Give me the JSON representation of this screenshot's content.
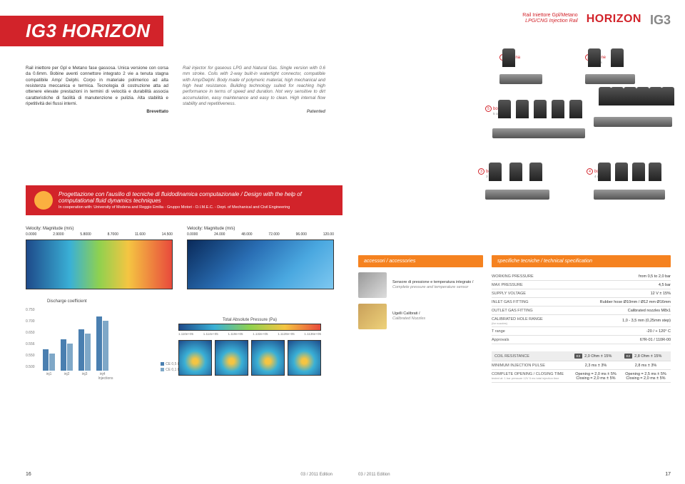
{
  "left": {
    "title": "IG3 HORIZON",
    "intro_it": "Rail iniettore per Gpl e Metano fase gassosa. Unica versione con corsa da 0.6mm. Bobine aventi connettore integrato 2 vie a tenuta stagna compatibile Amp/ Delphi. Corpo in materiale polimerico ad alta resistenza meccanica e termica. Tecnologia di costruzione atta ad ottenere elevate prestazioni in termini di velocità e durabilità associa caratteristiche di facilità di manutenzione e pulizia. Alta stabilità e ripetitività dei flussi interni.",
    "brev": "Brevettato",
    "intro_en": "Rail injector for gaseous LPG and Natural Gas. Single version with 0.6 mm stroke. Coils with 2-way built-in watertight connector, compatible with Amp/Delphi. Body made of polymeric material, high mechanical and high heat resistance. Building technology suited for reaching high performance in terms of speed and duration. Not very sensitive to dirt accumulation, easy maintenance and easy to clean. High internal flow stability and repetitiveness.",
    "patented": "Patented",
    "red_t1": "Progettazione con l'ausilio di tecniche di fluidodinamica computazionale / Design with the help of computational fluid dynamics techniques",
    "red_t2": "In cooperation with: University of Modena and Reggio Emilia - Gruppo Motori - D.I.M.E.C. - Dept. of Mechanical and Civil Engineering",
    "vel_title": "Velocity: Magnitude (m/s)",
    "vel_scale1": [
      "0.0000",
      "2.9000",
      "5.8000",
      "8.7000",
      "11.600",
      "14.500"
    ],
    "vel_scale2": [
      "0.0000",
      "24.000",
      "48.000",
      "72.000",
      "96.000",
      "120.00"
    ],
    "dc_title": "Discharge coefficient",
    "dc_y": [
      "0.750",
      "0.700",
      "0.650",
      "0.556",
      "0.550",
      "0.500"
    ],
    "dc_x": [
      "inj1",
      "inj2",
      "inj3",
      "inj4"
    ],
    "dc_x_label": "Injections",
    "dc_values_a": [
      0.58,
      0.62,
      0.66,
      0.71
    ],
    "dc_values_b": [
      0.56,
      0.6,
      0.64,
      0.69
    ],
    "dc_leg": [
      "CE 0,5 bar",
      "CE 0,1 bar"
    ],
    "p_title": "Total Absolute Pressure (Pa)",
    "p_scale": [
      "1.110e+05",
      "1.114e+05",
      "1.119e+05",
      "1.132e+05",
      "1.1128e+05",
      "1.1136e+05"
    ],
    "page_num": "16",
    "edition": "03 / 2011 Edition",
    "colors": {
      "brand_red": "#d2232a",
      "orange": "#f58220",
      "accent_yellow": "#fbb040",
      "bar_a": "#4a7fb0",
      "bar_b": "#7fa8c8"
    }
  },
  "right": {
    "header_sub_it": "Rail Iniettore Gpl/Metano",
    "header_sub_en": "LPG/CNG Injection Rail",
    "header_hz": "HORIZON",
    "header_ig3": "IG3",
    "rails": [
      {
        "n": "1",
        "it": "bobina",
        "en": "coil",
        "coils": 1
      },
      {
        "n": "2",
        "it": "bobine",
        "en": "coils",
        "coils": 2
      },
      {
        "n": "5",
        "it": "bobine",
        "en": "coils",
        "coils": 5
      },
      {
        "n": "6",
        "it": "",
        "en": "",
        "coils": 6
      },
      {
        "n": "3",
        "it": "bobine",
        "en": "coils",
        "coils": 3
      },
      {
        "n": "4",
        "it": "bobine",
        "en": "coils",
        "coils": 4
      }
    ],
    "acc_head": "accessori / accessories",
    "spec_head": "specifiche tecniche / technical specification",
    "acc": [
      {
        "it": "Sensore di pressione e temperatura integrato /",
        "en": "Complete pressure and temperature sensor"
      },
      {
        "it": "Ugelli Calibrati /",
        "en": "Calibrated Nozzles"
      }
    ],
    "spec": {
      "rows": [
        {
          "k": "WORKING PRESSURE",
          "v": "from 0,5 to 2,0 bar"
        },
        {
          "k": "MAX PRESSURE",
          "v": "4,5 bar"
        },
        {
          "k": "SUPPLY VOLTAGE",
          "v": "12 V ± 15%"
        },
        {
          "k": "INLET GAS FITTING",
          "v": "Rubber hose Ø10mm / Ø12 mm Ø16mm"
        },
        {
          "k": "OUTLET GAS FITTING",
          "v": "Calibrated nozzles M8x1"
        },
        {
          "k": "CALIBRATED HOLE RANGE",
          "sub": "(for nozzles)",
          "v": "1,0 - 3,5 mm (0,25mm step)"
        },
        {
          "k": "T range",
          "v": "-20 / + 120° C"
        },
        {
          "k": "Approvals",
          "v": "67R-01 / 110R-00"
        }
      ],
      "dual": [
        {
          "k": "COIL RESISTANCE",
          "p1": "E3",
          "v1": "2,0 Ohm ± 15%",
          "p2": "E2",
          "v2": "2,8 Ohm ± 15%"
        },
        {
          "k": "MINIMUM INJECTION PULSE",
          "v1": "2,3 ms ± 3%",
          "v2": "2,8 ms ± 3%"
        },
        {
          "k": "COMPLETE OPENING / CLOSING TIME",
          "sub": "tested at:    1 bar pressure   12V   5 ms total injection time",
          "v1": "Opening = 2,0 ms ± 5%\nClosing  = 2,0 ms ± 5%",
          "v2": "Opening = 2,5 ms ± 5%\nClosing  = 2,0 ms ± 5%"
        }
      ]
    },
    "page_num": "17",
    "edition": "03 / 2011 Edition"
  }
}
